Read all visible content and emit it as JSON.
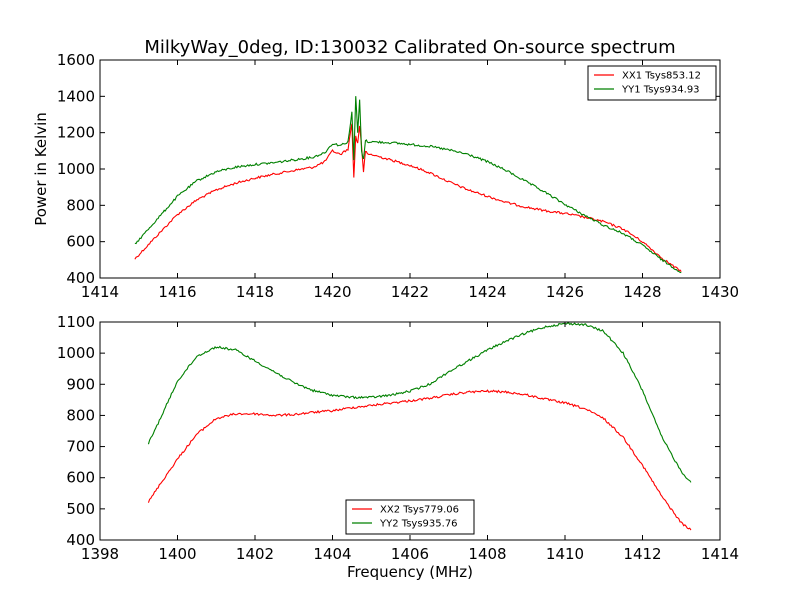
{
  "figure": {
    "title": "MilkyWay_0deg, ID:130032 Calibrated On-source spectrum"
  },
  "chart_data": [
    {
      "type": "line",
      "title": "MilkyWay_0deg, ID:130032 Calibrated On-source spectrum",
      "xlabel": "",
      "ylabel": "Power in Kelvin",
      "xlim": [
        1414,
        1430
      ],
      "ylim": [
        400,
        1600
      ],
      "xticks": [
        1414,
        1416,
        1418,
        1420,
        1422,
        1424,
        1426,
        1428,
        1430
      ],
      "yticks": [
        400,
        600,
        800,
        1000,
        1200,
        1400,
        1600
      ],
      "grid": false,
      "legend_position": "top-right",
      "series": [
        {
          "name": "XX1 Tsys853.12",
          "color": "#ff0000",
          "x": [
            1414.9,
            1415.5,
            1416.0,
            1416.5,
            1417.0,
            1417.5,
            1418.0,
            1418.5,
            1419.0,
            1419.5,
            1419.8,
            1420.0,
            1420.2,
            1420.4,
            1420.5,
            1420.55,
            1420.6,
            1420.65,
            1420.7,
            1420.75,
            1420.8,
            1420.85,
            1420.9,
            1421.0,
            1421.5,
            1422.0,
            1422.5,
            1423.0,
            1423.5,
            1424.0,
            1424.5,
            1425.0,
            1425.5,
            1426.0,
            1426.5,
            1427.0,
            1427.5,
            1428.0,
            1428.5,
            1429.0
          ],
          "y": [
            505,
            640,
            750,
            830,
            885,
            922,
            950,
            972,
            992,
            1010,
            1040,
            1100,
            1080,
            1110,
            1250,
            950,
            1180,
            1140,
            1240,
            1130,
            980,
            1100,
            1080,
            1080,
            1050,
            1020,
            980,
            930,
            885,
            850,
            815,
            790,
            770,
            755,
            735,
            710,
            670,
            600,
            510,
            435
          ]
        },
        {
          "name": "YY1 Tsys934.93",
          "color": "#008000",
          "x": [
            1414.9,
            1415.5,
            1416.0,
            1416.5,
            1417.0,
            1417.5,
            1418.0,
            1418.5,
            1419.0,
            1419.5,
            1419.8,
            1420.0,
            1420.2,
            1420.4,
            1420.5,
            1420.55,
            1420.6,
            1420.65,
            1420.7,
            1420.75,
            1420.8,
            1420.85,
            1420.9,
            1421.0,
            1421.5,
            1422.0,
            1422.5,
            1423.0,
            1423.5,
            1424.0,
            1424.5,
            1425.0,
            1425.5,
            1426.0,
            1426.5,
            1427.0,
            1427.5,
            1428.0,
            1428.5,
            1429.0
          ],
          "y": [
            585,
            730,
            850,
            935,
            985,
            1010,
            1025,
            1035,
            1050,
            1065,
            1090,
            1140,
            1130,
            1150,
            1310,
            1050,
            1400,
            1200,
            1380,
            1100,
            1050,
            1160,
            1150,
            1150,
            1145,
            1135,
            1125,
            1105,
            1080,
            1040,
            990,
            930,
            870,
            805,
            745,
            690,
            645,
            580,
            500,
            430
          ]
        }
      ]
    },
    {
      "type": "line",
      "title": "",
      "xlabel": "Frequency (MHz)",
      "ylabel": "",
      "xlim": [
        1398,
        1414
      ],
      "ylim": [
        400,
        1100
      ],
      "xticks": [
        1398,
        1400,
        1402,
        1404,
        1406,
        1408,
        1410,
        1412,
        1414
      ],
      "yticks": [
        400,
        500,
        600,
        700,
        800,
        900,
        1000,
        1100
      ],
      "grid": false,
      "legend_position": "bottom-center",
      "series": [
        {
          "name": "XX2 Tsys779.06",
          "color": "#ff0000",
          "x": [
            1399.25,
            1399.5,
            1400.0,
            1400.5,
            1401.0,
            1401.5,
            1402.0,
            1402.5,
            1403.0,
            1403.5,
            1404.0,
            1404.5,
            1405.0,
            1405.5,
            1406.0,
            1406.5,
            1407.0,
            1407.5,
            1408.0,
            1408.5,
            1409.0,
            1409.5,
            1410.0,
            1410.5,
            1411.0,
            1411.5,
            1412.0,
            1412.5,
            1413.0,
            1413.25
          ],
          "y": [
            522,
            570,
            660,
            740,
            790,
            805,
            805,
            800,
            803,
            810,
            815,
            825,
            832,
            840,
            847,
            855,
            866,
            875,
            878,
            875,
            866,
            852,
            840,
            822,
            790,
            730,
            640,
            540,
            455,
            432
          ]
        },
        {
          "name": "YY2 Tsys935.76",
          "color": "#008000",
          "x": [
            1399.25,
            1399.5,
            1400.0,
            1400.5,
            1401.0,
            1401.5,
            1402.0,
            1402.5,
            1403.0,
            1403.5,
            1404.0,
            1404.5,
            1405.0,
            1405.5,
            1406.0,
            1406.5,
            1407.0,
            1407.5,
            1408.0,
            1408.5,
            1409.0,
            1409.5,
            1410.0,
            1410.5,
            1411.0,
            1411.5,
            1412.0,
            1412.5,
            1413.0,
            1413.25
          ],
          "y": [
            710,
            775,
            910,
            990,
            1020,
            1010,
            975,
            940,
            905,
            880,
            865,
            858,
            858,
            865,
            878,
            900,
            940,
            975,
            1010,
            1040,
            1065,
            1085,
            1095,
            1092,
            1070,
            1000,
            880,
            730,
            620,
            585
          ]
        }
      ]
    }
  ]
}
